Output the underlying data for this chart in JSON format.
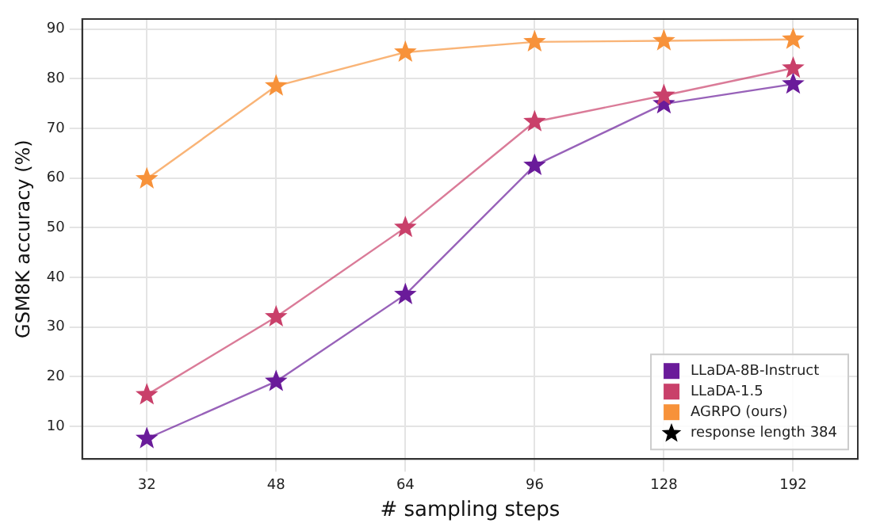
{
  "chart_data": {
    "type": "line",
    "xlabel": "# sampling steps",
    "ylabel": "GSM8K accuracy (%)",
    "categories": [
      "32",
      "48",
      "64",
      "96",
      "128",
      "192"
    ],
    "series": [
      {
        "name": "LLaDA-8B-Instruct",
        "color": "#6a1b9a",
        "values": [
          7.5,
          19,
          36.5,
          62.5,
          74.9,
          78.9
        ]
      },
      {
        "name": "LLaDA-1.5",
        "color": "#c9406a",
        "values": [
          16.3,
          32,
          50,
          71.3,
          76.6,
          82.1
        ]
      },
      {
        "name": "AGRPO (ours)",
        "color": "#f7923a",
        "values": [
          59.8,
          78.5,
          85.3,
          87.4,
          87.6,
          87.9
        ]
      }
    ],
    "ylim": [
      3.4,
      92
    ],
    "yticks": [
      10,
      20,
      30,
      40,
      50,
      60,
      70,
      80,
      90
    ],
    "grid": true,
    "legend": "bottom right",
    "marker": "star",
    "line_style": "solid",
    "annotations": [
      "response length 384"
    ]
  }
}
